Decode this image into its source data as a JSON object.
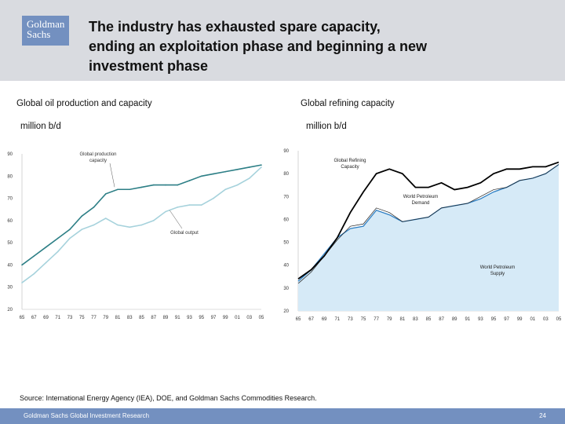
{
  "header": {
    "logo_line1": "Goldman",
    "logo_line2": "Sachs",
    "title_line1": "The industry has exhausted spare capacity,",
    "title_line2": "ending an exploitation phase and beginning a new",
    "title_line3": "investment phase"
  },
  "left_chart": {
    "heading": "Global oil production and capacity",
    "unit": "million b/d"
  },
  "right_chart": {
    "heading": "Global refining capacity",
    "unit": "million b/d"
  },
  "footer": {
    "source": "Source: International Energy Agency (IEA), DOE, and Goldman Sachs Commodities Research.",
    "org": "Goldman Sachs Global Investment Research",
    "page": "24"
  },
  "colors": {
    "brand": "#7390c0",
    "header_bg": "#d9dbe0",
    "capacity_line": "#2d7f86",
    "output_line": "#a6d2dc",
    "supply_fill": "#d6eaf7",
    "supply_line": "#2f80c4"
  },
  "chart_data": [
    {
      "type": "line",
      "title": "Global oil production and capacity",
      "ylabel": "million b/d",
      "ylim": [
        20,
        90
      ],
      "yticks": [
        "20",
        "30",
        "40",
        "50",
        "60",
        "70",
        "80",
        "90"
      ],
      "xticks": [
        "65",
        "67",
        "69",
        "71",
        "73",
        "75",
        "77",
        "79",
        "81",
        "83",
        "85",
        "87",
        "89",
        "91",
        "93",
        "95",
        "97",
        "99",
        "01",
        "03",
        "05"
      ],
      "x": [
        1965,
        1967,
        1969,
        1971,
        1973,
        1975,
        1977,
        1979,
        1981,
        1983,
        1985,
        1987,
        1989,
        1991,
        1993,
        1995,
        1997,
        1999,
        2001,
        2003,
        2005
      ],
      "series": [
        {
          "name": "Global production capacity",
          "values": [
            40,
            44,
            48,
            52,
            56,
            62,
            66,
            72,
            74,
            74,
            75,
            76,
            76,
            76,
            78,
            80,
            81,
            82,
            83,
            84,
            85
          ]
        },
        {
          "name": "Global output",
          "values": [
            32,
            36,
            41,
            46,
            52,
            56,
            58,
            61,
            58,
            57,
            58,
            60,
            64,
            66,
            67,
            67,
            70,
            74,
            76,
            79,
            84
          ]
        }
      ],
      "annotations": [
        "Global production capacity",
        "Global output"
      ]
    },
    {
      "type": "area",
      "title": "Global refining capacity",
      "ylabel": "million b/d",
      "ylim": [
        20,
        90
      ],
      "yticks": [
        "20",
        "30",
        "40",
        "50",
        "60",
        "70",
        "80",
        "90"
      ],
      "xticks": [
        "65",
        "67",
        "69",
        "71",
        "73",
        "75",
        "77",
        "79",
        "81",
        "83",
        "85",
        "87",
        "89",
        "91",
        "93",
        "95",
        "97",
        "99",
        "01",
        "03",
        "05"
      ],
      "x": [
        1965,
        1967,
        1969,
        1971,
        1973,
        1975,
        1977,
        1979,
        1981,
        1983,
        1985,
        1987,
        1989,
        1991,
        1993,
        1995,
        1997,
        1999,
        2001,
        2003,
        2005
      ],
      "series": [
        {
          "name": "Global Refining Capacity",
          "values": [
            34,
            38,
            44,
            52,
            63,
            72,
            80,
            82,
            80,
            74,
            74,
            76,
            73,
            74,
            76,
            80,
            82,
            82,
            83,
            83,
            85
          ]
        },
        {
          "name": "World Petroleum Demand",
          "values": [
            32,
            37,
            44,
            51,
            57,
            58,
            65,
            63,
            59,
            60,
            61,
            65,
            66,
            67,
            70,
            73,
            74,
            77,
            78,
            80,
            84
          ]
        },
        {
          "name": "World Petroleum Supply",
          "values": [
            33,
            38,
            45,
            52,
            56,
            57,
            64,
            62,
            59,
            60,
            61,
            65,
            66,
            67,
            69,
            72,
            74,
            77,
            78,
            80,
            84
          ]
        }
      ],
      "annotations": [
        "Global Refining Capacity",
        "World Petroleum Demand",
        "World Petroleum Supply"
      ]
    }
  ]
}
